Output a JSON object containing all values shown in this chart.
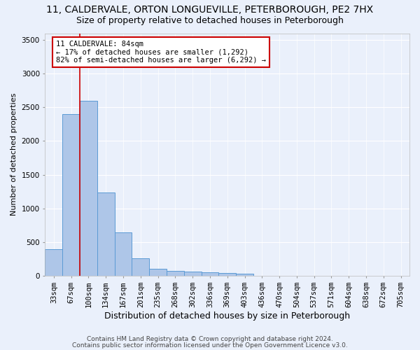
{
  "title_line1": "11, CALDERVALE, ORTON LONGUEVILLE, PETERBOROUGH, PE2 7HX",
  "title_line2": "Size of property relative to detached houses in Peterborough",
  "xlabel": "Distribution of detached houses by size in Peterborough",
  "ylabel": "Number of detached properties",
  "categories": [
    "33sqm",
    "67sqm",
    "100sqm",
    "134sqm",
    "167sqm",
    "201sqm",
    "235sqm",
    "268sqm",
    "302sqm",
    "336sqm",
    "369sqm",
    "403sqm",
    "436sqm",
    "470sqm",
    "504sqm",
    "537sqm",
    "571sqm",
    "604sqm",
    "638sqm",
    "672sqm",
    "705sqm"
  ],
  "values": [
    390,
    2400,
    2600,
    1240,
    640,
    260,
    100,
    70,
    60,
    55,
    40,
    30,
    0,
    0,
    0,
    0,
    0,
    0,
    0,
    0,
    0
  ],
  "bar_color": "#aec6e8",
  "bar_edge_color": "#5b9bd5",
  "annotation_text": "11 CALDERVALE: 84sqm\n← 17% of detached houses are smaller (1,292)\n82% of semi-detached houses are larger (6,292) →",
  "annotation_box_color": "#ffffff",
  "annotation_box_edge": "#cc0000",
  "red_line_color": "#cc0000",
  "red_line_x": 1.5,
  "ylim": [
    0,
    3600
  ],
  "yticks": [
    0,
    500,
    1000,
    1500,
    2000,
    2500,
    3000,
    3500
  ],
  "footer_line1": "Contains HM Land Registry data © Crown copyright and database right 2024.",
  "footer_line2": "Contains public sector information licensed under the Open Government Licence v3.0.",
  "background_color": "#eaf0fb",
  "grid_color": "#ffffff",
  "title_fontsize": 10,
  "subtitle_fontsize": 9,
  "ylabel_fontsize": 8,
  "xlabel_fontsize": 9,
  "tick_fontsize": 7.5,
  "footer_fontsize": 6.5
}
